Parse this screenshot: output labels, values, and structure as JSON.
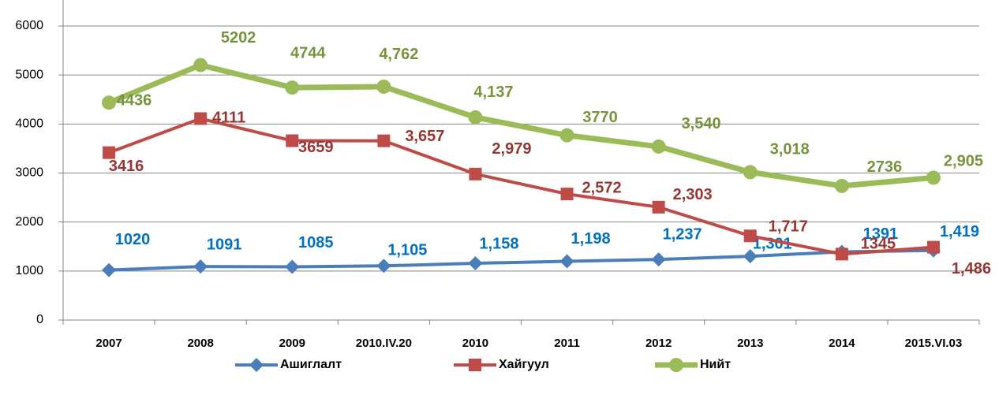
{
  "chart_data": {
    "type": "line",
    "categories": [
      "2007",
      "2008",
      "2009",
      "2010.IV.20",
      "2010",
      "2011",
      "2012",
      "2013",
      "2014",
      "2015.VI.03"
    ],
    "ylim": [
      0,
      6000
    ],
    "yticks": [
      0,
      1000,
      2000,
      3000,
      4000,
      5000,
      6000
    ],
    "grid": true,
    "legend": "bottom",
    "series": [
      {
        "name": "Ашиглалт",
        "color": "#4a7ebb",
        "label_color": "#0070c0",
        "marker": "diamond",
        "values": [
          1020,
          1091,
          1085,
          1105,
          1158,
          1198,
          1237,
          1301,
          1391,
          1419
        ],
        "value_labels": [
          "1020",
          "1091",
          "1085",
          "1,105",
          "1,158",
          "1,198",
          "1,237",
          "1,301",
          "1391",
          "1,419"
        ]
      },
      {
        "name": "Хайгуул",
        "color": "#be4b48",
        "label_color": "#943634",
        "marker": "square",
        "values": [
          3416,
          4111,
          3659,
          3657,
          2979,
          2572,
          2303,
          1717,
          1345,
          1486
        ],
        "value_labels": [
          "3416",
          "4111",
          "3659",
          "3,657",
          "2,979",
          "2,572",
          "2,303",
          "1,717",
          "1345",
          "1,486"
        ]
      },
      {
        "name": "Нийт",
        "color": "#9bbb59",
        "label_color": "#77933c",
        "marker": "circle",
        "values": [
          4436,
          5202,
          4744,
          4762,
          4137,
          3770,
          3540,
          3018,
          2736,
          2905
        ],
        "value_labels": [
          "4436",
          "5202",
          "4744",
          "4,762",
          "4,137",
          "3770",
          "3,540",
          "3,018",
          "2736",
          "2,905"
        ]
      }
    ]
  }
}
